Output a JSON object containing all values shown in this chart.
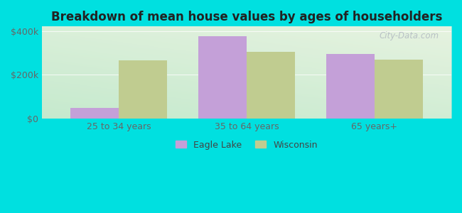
{
  "title": "Breakdown of mean house values by ages of householders",
  "categories": [
    "25 to 34 years",
    "35 to 64 years",
    "65 years+"
  ],
  "eagle_lake": [
    50000,
    375000,
    295000
  ],
  "wisconsin": [
    265000,
    305000,
    270000
  ],
  "bar_color_eagle": "#c4a0d8",
  "bar_color_wisconsin": "#c0cc90",
  "background_outer": "#00e0e0",
  "ylim": [
    0,
    420000
  ],
  "yticks": [
    0,
    200000,
    400000
  ],
  "ytick_labels": [
    "$0",
    "$200k",
    "$400k"
  ],
  "legend_labels": [
    "Eagle Lake",
    "Wisconsin"
  ],
  "watermark": "City-Data.com",
  "bar_width": 0.38
}
